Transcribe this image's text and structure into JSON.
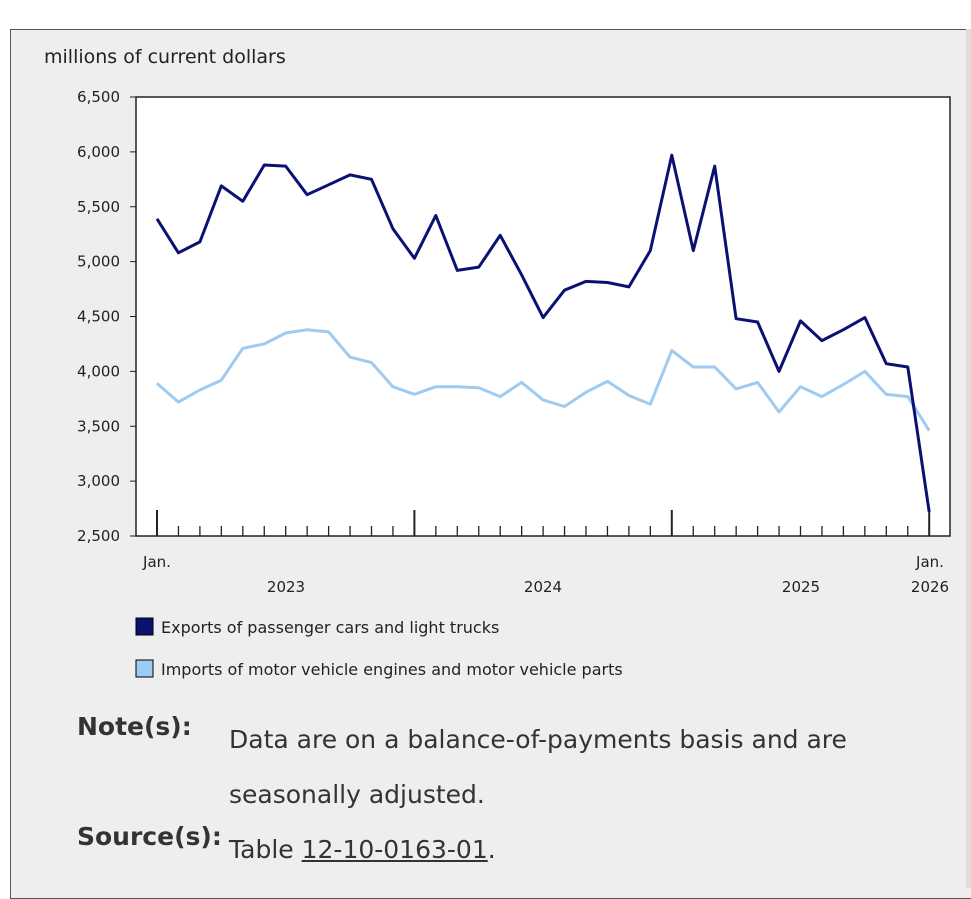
{
  "chart_data": {
    "type": "line",
    "unit_label": "millions of current dollars",
    "ylim": [
      2500,
      6500
    ],
    "y_ticks": [
      "2,500",
      "3,000",
      "3,500",
      "4,000",
      "4,500",
      "5,000",
      "5,500",
      "6,000",
      "6,500"
    ],
    "y_tick_values": [
      2500,
      3000,
      3500,
      4000,
      4500,
      5000,
      5500,
      6000,
      6500
    ],
    "x_month_labels": {
      "first": "Jan.",
      "last": "Jan."
    },
    "x_year_labels": [
      "2023",
      "2024",
      "2025",
      "2026"
    ],
    "months": 37,
    "series": [
      {
        "name": "Exports of passenger cars and light trucks",
        "color": "#0a1172",
        "values": [
          5390,
          5080,
          5180,
          5690,
          5550,
          5880,
          5870,
          5610,
          5700,
          5790,
          5750,
          5300,
          5030,
          5420,
          4920,
          4950,
          5240,
          4880,
          4490,
          4740,
          4820,
          4810,
          4770,
          5100,
          5970,
          5100,
          5870,
          4480,
          4450,
          4000,
          4460,
          4280,
          4380,
          4490,
          4070,
          4040,
          2720
        ]
      },
      {
        "name": "Imports of motor vehicle engines and motor vehicle parts",
        "color": "#9ecbf2",
        "values": [
          3890,
          3720,
          3830,
          3920,
          4210,
          4250,
          4350,
          4380,
          4360,
          4130,
          4080,
          3860,
          3790,
          3860,
          3860,
          3850,
          3770,
          3900,
          3740,
          3680,
          3810,
          3910,
          3780,
          3700,
          4190,
          4040,
          4040,
          3840,
          3900,
          3630,
          3860,
          3770,
          3880,
          4000,
          3790,
          3770,
          3460
        ]
      }
    ]
  },
  "notes": {
    "note_label": "Note(s):",
    "note_text": "Data are on a balance-of-payments basis and are seasonally adjusted.",
    "source_label": "Source(s):",
    "source_prefix": "Table ",
    "source_link": "12-10-0163-01",
    "source_suffix": "."
  }
}
